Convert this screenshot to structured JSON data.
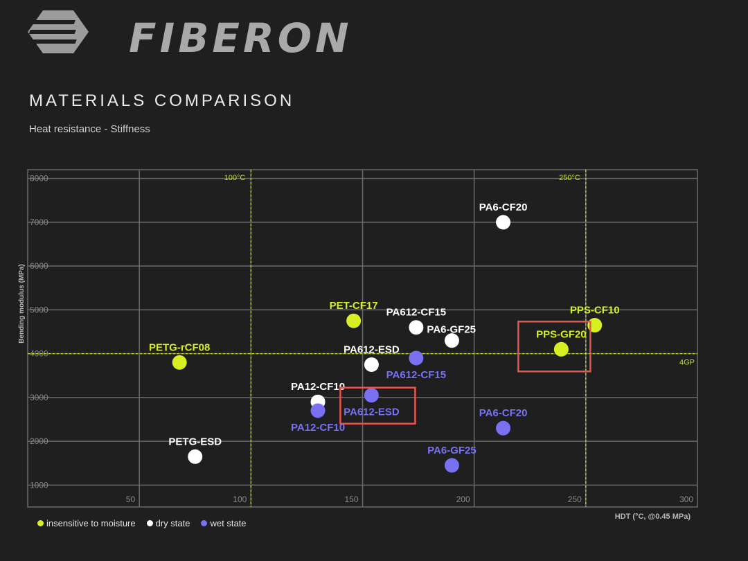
{
  "brand": {
    "name": "FIBERON"
  },
  "header": {
    "title": "MATERIALS COMPARISON",
    "subtitle": "Heat resistance - Stiffness"
  },
  "colors": {
    "insensitive": "#d7f024",
    "dry": "#ffffff",
    "wet": "#7a70f2",
    "highlight": "#e8544e",
    "grid": "#6a6a6a",
    "ref_line": "#c8e02a"
  },
  "legend": [
    {
      "label": "insensitive to moisture",
      "group": "insensitive"
    },
    {
      "label": "dry state",
      "group": "dry"
    },
    {
      "label": "wet state",
      "group": "wet"
    }
  ],
  "chart_data": {
    "type": "scatter",
    "xlabel": "HDT (°C, @0.45 MPa)",
    "ylabel": "Bending modulus (MPa)",
    "xlim": [
      0,
      300
    ],
    "ylim": [
      500,
      8200
    ],
    "x_ticks": [
      50,
      100,
      150,
      200,
      250,
      300
    ],
    "y_ticks": [
      1000,
      2000,
      3000,
      4000,
      5000,
      6000,
      7000,
      8000
    ],
    "grid": true,
    "reference_lines": [
      {
        "axis": "x",
        "value": 100,
        "label": "100°C"
      },
      {
        "axis": "x",
        "value": 250,
        "label": "250°C"
      },
      {
        "axis": "y",
        "value": 4000,
        "label": "4GP"
      }
    ],
    "points": [
      {
        "label": "PETG-rCF08",
        "x": 68,
        "y": 3800,
        "group": "insensitive",
        "label_pos": "above"
      },
      {
        "label": "PET-CF17",
        "x": 146,
        "y": 4750,
        "group": "insensitive",
        "label_pos": "above"
      },
      {
        "label": "PPS-CF10",
        "x": 254,
        "y": 4650,
        "group": "insensitive",
        "label_pos": "above"
      },
      {
        "label": "PPS-GF20",
        "x": 239,
        "y": 4100,
        "group": "insensitive",
        "label_pos": "above",
        "highlight": true
      },
      {
        "label": "PA6-CF20",
        "x": 213,
        "y": 7000,
        "group": "dry",
        "label_pos": "above"
      },
      {
        "label": "PA612-CF15",
        "x": 174,
        "y": 4600,
        "group": "dry",
        "label_pos": "above"
      },
      {
        "label": "PA6-GF25",
        "x": 190,
        "y": 4300,
        "group": "dry",
        "label_pos": "above-right"
      },
      {
        "label": "PA612-ESD",
        "x": 154,
        "y": 3750,
        "group": "dry",
        "label_pos": "above"
      },
      {
        "label": "PA12-CF10",
        "x": 130,
        "y": 2900,
        "group": "dry",
        "label_pos": "above"
      },
      {
        "label": "PETG-ESD",
        "x": 75,
        "y": 1650,
        "group": "dry",
        "label_pos": "above"
      },
      {
        "label": "PA612-CF15",
        "x": 174,
        "y": 3900,
        "group": "wet",
        "label_pos": "below"
      },
      {
        "label": "PA612-ESD",
        "x": 154,
        "y": 3050,
        "group": "wet",
        "label_pos": "below",
        "highlight": true
      },
      {
        "label": "PA12-CF10",
        "x": 130,
        "y": 2700,
        "group": "wet",
        "label_pos": "below"
      },
      {
        "label": "PA6-CF20",
        "x": 213,
        "y": 2300,
        "group": "wet",
        "label_pos": "above"
      },
      {
        "label": "PA6-GF25",
        "x": 190,
        "y": 1450,
        "group": "wet",
        "label_pos": "above"
      }
    ]
  }
}
